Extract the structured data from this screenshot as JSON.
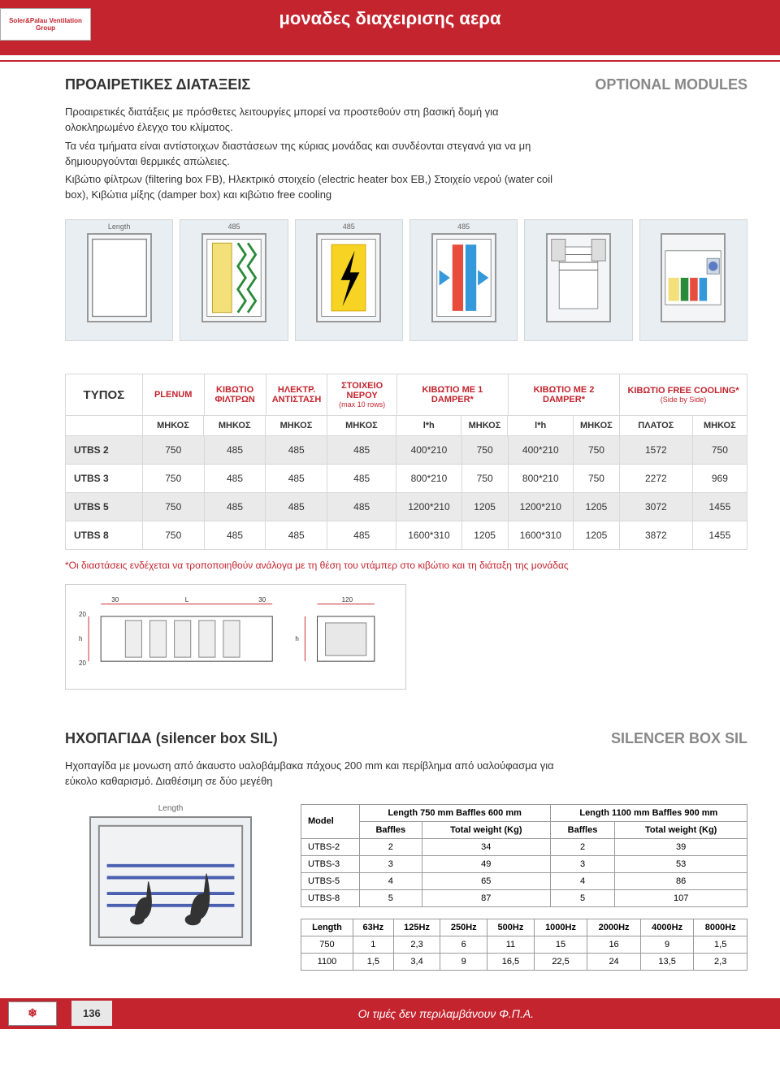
{
  "header": {
    "logo": "Soler&Palau Ventilation Group",
    "title": "μοναδες διαχειρισης αερα"
  },
  "section1": {
    "title_gr": "ΠΡΟΑΙΡΕΤΙΚΕΣ ΔΙΑΤΑΞΕΙΣ",
    "title_en": "OPTIONAL MODULES",
    "p1": "Προαιρετικές διατάξεις με πρόσθετες λειτουργίες μπορεί να προστεθούν στη βασική δομή για ολοκληρωμένο έλεγχο του κλίματος.",
    "p2": "Τα νέα τμήματα είναι αντίστοιχων διαστάσεων της κύριας μονάδας και συνδέονται στεγανά για να μη δημιουργούνται θερμικές απώλειες.",
    "p3": "Κιβώτιο φίλτρων (filtering box FB), Ηλεκτρικό στοιχείο (electric heater box EB,) Στοιχείο νερού (water coil box), Κιβώτια μίξης (damper box) και κιβώτιο free cooling"
  },
  "modules": {
    "m0_label": "Length",
    "m1_label": "485",
    "m2_label": "485",
    "m3_label": "485"
  },
  "table1": {
    "head": {
      "typos": "ΤΥΠΟΣ",
      "plenum": "PLENUM",
      "filtron": "ΚΙΒΩΤΙΟ ΦΙΛΤΡΩΝ",
      "antist": "ΗΛΕΚΤΡ. ΑΝΤΙΣΤΑΣΗ",
      "nerou": "ΣΤΟΙΧΕΙΟ ΝΕΡΟΥ",
      "nerou_sub": "(max 10 rows)",
      "d1": "ΚΙΒΩΤΙΟ ΜΕ 1 DAMPER*",
      "d2": "ΚΙΒΩΤΙΟ ΜΕ 2 DAMPER*",
      "fc": "ΚΙΒΩΤΙΟ FREE COOLING*",
      "fc_sub": "(Side by Side)"
    },
    "sub": {
      "mhkos": "ΜΗΚΟΣ",
      "lh": "l*h",
      "platos": "ΠΛΑΤΟΣ"
    },
    "rows": [
      {
        "m": "UTBS 2",
        "v": [
          "750",
          "485",
          "485",
          "485",
          "400*210",
          "750",
          "400*210",
          "750",
          "1572",
          "750"
        ]
      },
      {
        "m": "UTBS 3",
        "v": [
          "750",
          "485",
          "485",
          "485",
          "800*210",
          "750",
          "800*210",
          "750",
          "2272",
          "969"
        ]
      },
      {
        "m": "UTBS 5",
        "v": [
          "750",
          "485",
          "485",
          "485",
          "1200*210",
          "1205",
          "1200*210",
          "1205",
          "3072",
          "1455"
        ]
      },
      {
        "m": "UTBS 8",
        "v": [
          "750",
          "485",
          "485",
          "485",
          "1600*310",
          "1205",
          "1600*310",
          "1205",
          "3872",
          "1455"
        ]
      }
    ],
    "note": "*Οι διαστάσεις ενδέχεται να τροποποιηθούν ανάλογα με τη θέση του ντάμπερ στο κιβώτιο και τη διάταξη της μονάδας"
  },
  "section2": {
    "title_gr": "ΗΧΟΠΑΓΙΔΑ (silencer box SIL)",
    "title_en": "SILENCER BOX SIL",
    "p1": "Ηχοπαγίδα με μονωση από άκαυστο υαλοβάμβακα πάχους 200 mm και περίβλημα από υαλούφασμα για εύκολο καθαρισμό. Διαθέσιμη σε δύο μεγέθη",
    "length_label": "Length"
  },
  "table2a": {
    "h_model": "Model",
    "h_g1": "Length 750 mm Baffles 600 mm",
    "h_g2": "Length 1100 mm Baffles 900 mm",
    "h_baf": "Baffles",
    "h_tw": "Total weight (Kg)",
    "rows": [
      {
        "m": "UTBS-2",
        "b1": "2",
        "w1": "34",
        "b2": "2",
        "w2": "39"
      },
      {
        "m": "UTBS-3",
        "b1": "3",
        "w1": "49",
        "b2": "3",
        "w2": "53"
      },
      {
        "m": "UTBS-5",
        "b1": "4",
        "w1": "65",
        "b2": "4",
        "w2": "86"
      },
      {
        "m": "UTBS-8",
        "b1": "5",
        "w1": "87",
        "b2": "5",
        "w2": "107"
      }
    ]
  },
  "table2b": {
    "h_len": "Length",
    "freqs": [
      "63Hz",
      "125Hz",
      "250Hz",
      "500Hz",
      "1000Hz",
      "2000Hz",
      "4000Hz",
      "8000Hz"
    ],
    "rows": [
      {
        "l": "750",
        "v": [
          "1",
          "2,3",
          "6",
          "11",
          "15",
          "16",
          "9",
          "1,5"
        ]
      },
      {
        "l": "1100",
        "v": [
          "1,5",
          "3,4",
          "9",
          "16,5",
          "22,5",
          "24",
          "13,5",
          "2,3"
        ]
      }
    ]
  },
  "footer": {
    "logo": "❄",
    "page": "136",
    "text": "Οι τιμές δεν περιλαμβάνουν Φ.Π.Α."
  },
  "colors": {
    "brand_red": "#c3242e",
    "grey_text": "#888888"
  }
}
